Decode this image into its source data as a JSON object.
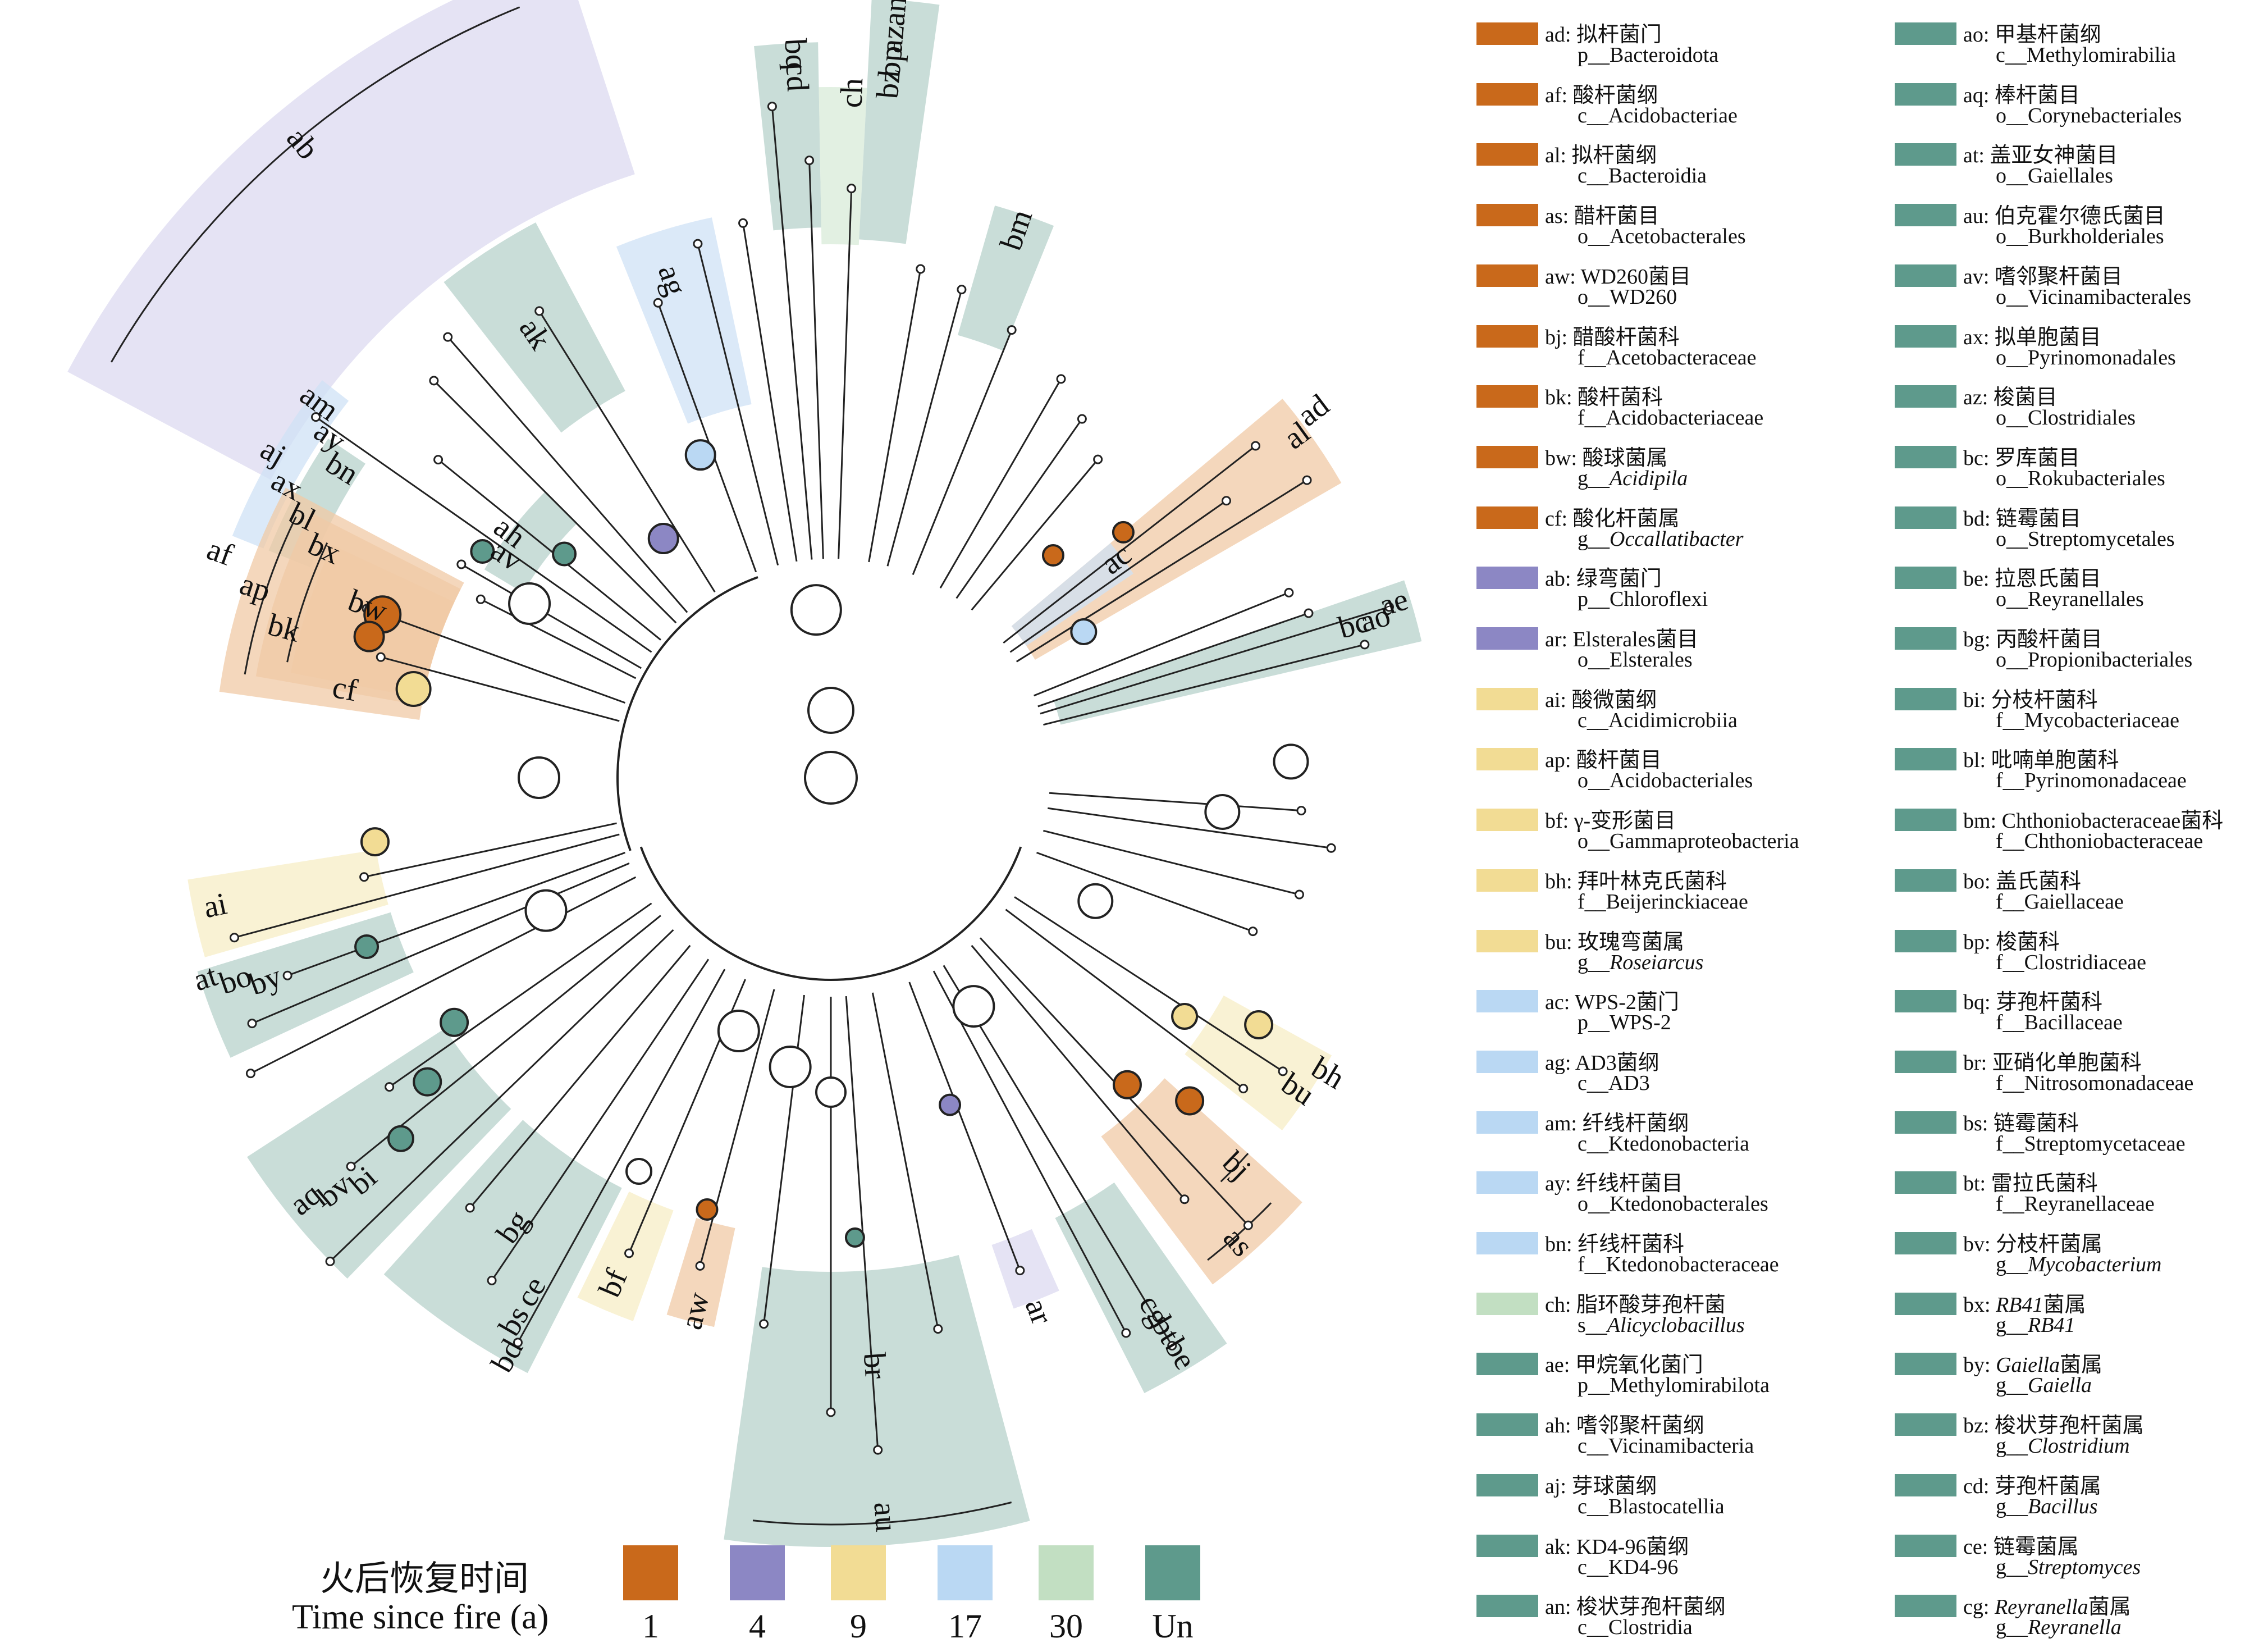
{
  "colors": {
    "t1": "#c9691b",
    "t4": "#8c87c4",
    "t9": "#f2dc94",
    "t17": "#bad8f3",
    "t30": "#c2dfc2",
    "tUn": "#5e9a8c",
    "shade_t1": "#f0c9a6",
    "shade_t4": "#dcdaf0",
    "shade_t9": "#f7edc6",
    "shade_t17": "#cfe1f6",
    "shade_t30": "#d8ebd8",
    "shade_tUn": "#b7d2cb"
  },
  "time_legend": {
    "title_cn": "火后恢复时间",
    "title_en": "Time since fire (a)",
    "items": [
      {
        "label": "1",
        "color": "#c9691b"
      },
      {
        "label": "4",
        "color": "#8c87c4"
      },
      {
        "label": "9",
        "color": "#f2dc94"
      },
      {
        "label": "17",
        "color": "#bad8f3"
      },
      {
        "label": "30",
        "color": "#c2dfc2"
      },
      {
        "label": "Un",
        "color": "#5e9a8c"
      }
    ]
  },
  "clade_labels": [
    "ab",
    "af",
    "ap",
    "bk",
    "bw",
    "cf",
    "ah",
    "av",
    "aj",
    "ax",
    "bl",
    "bx",
    "am",
    "ay",
    "bn",
    "ak",
    "ag",
    "bq",
    "cd",
    "ch",
    "an",
    "az",
    "bp",
    "bz",
    "bm",
    "ad",
    "al",
    "ac",
    "ae",
    "ao",
    "bc",
    "ai",
    "at",
    "bo",
    "by",
    "aq",
    "bv",
    "bi",
    "bg",
    "ce",
    "bs",
    "bd",
    "bf",
    "aw",
    "br",
    "au",
    "ar",
    "cg",
    "bt",
    "be",
    "bj",
    "as",
    "bu",
    "bh"
  ],
  "key_left": [
    {
      "code": "ad: 拟杆菌门",
      "taxon": "p__Bacteroidota",
      "italic": false,
      "color": "#c9691b"
    },
    {
      "code": "af: 酸杆菌纲",
      "taxon": "c__Acidobacteriae",
      "italic": false,
      "color": "#c9691b"
    },
    {
      "code": "al: 拟杆菌纲",
      "taxon": "c__Bacteroidia",
      "italic": false,
      "color": "#c9691b"
    },
    {
      "code": "as: 醋杆菌目",
      "taxon": "o__Acetobacterales",
      "italic": false,
      "color": "#c9691b"
    },
    {
      "code": "aw: WD260菌目",
      "taxon": "o__WD260",
      "italic": false,
      "color": "#c9691b"
    },
    {
      "code": "bj: 醋酸杆菌科",
      "taxon": "f__Acetobacteraceae",
      "italic": false,
      "color": "#c9691b"
    },
    {
      "code": "bk: 酸杆菌科",
      "taxon": "f__Acidobacteriaceae",
      "italic": false,
      "color": "#c9691b"
    },
    {
      "code": "bw: 酸球菌属",
      "taxon": "g__",
      "taxon_it": "Acidipila",
      "italic": true,
      "color": "#c9691b"
    },
    {
      "code": "cf: 酸化杆菌属",
      "taxon": "g__",
      "taxon_it": "Occallatibacter",
      "italic": true,
      "color": "#c9691b"
    },
    {
      "code": "ab: 绿弯菌门",
      "taxon": "p__Chloroflexi",
      "italic": false,
      "color": "#8c87c4"
    },
    {
      "code": "ar: Elsterales菌目",
      "taxon": "o__Elsterales",
      "italic": false,
      "color": "#8c87c4"
    },
    {
      "code": "ai: 酸微菌纲",
      "taxon": "c__Acidimicrobiia",
      "italic": false,
      "color": "#f2dc94"
    },
    {
      "code": "ap: 酸杆菌目",
      "taxon": "o__Acidobacteriales",
      "italic": false,
      "color": "#f2dc94"
    },
    {
      "code": "bf: γ-变形菌目",
      "taxon": "o__Gammaproteobacteria",
      "italic": false,
      "color": "#f2dc94"
    },
    {
      "code": "bh: 拜叶林克氏菌科",
      "taxon": "f__Beijerinckiaceae",
      "italic": false,
      "color": "#f2dc94"
    },
    {
      "code": "bu: 玫瑰弯菌属",
      "taxon": "g__",
      "taxon_it": "Roseiarcus",
      "italic": true,
      "color": "#f2dc94"
    },
    {
      "code": "ac: WPS-2菌门",
      "taxon": "p__WPS-2",
      "italic": false,
      "color": "#bad8f3"
    },
    {
      "code": "ag: AD3菌纲",
      "taxon": "c__AD3",
      "italic": false,
      "color": "#bad8f3"
    },
    {
      "code": "am: 纤线杆菌纲",
      "taxon": "c__Ktedonobacteria",
      "italic": false,
      "color": "#bad8f3"
    },
    {
      "code": "ay: 纤线杆菌目",
      "taxon": "o__Ktedonobacterales",
      "italic": false,
      "color": "#bad8f3"
    },
    {
      "code": "bn: 纤线杆菌科",
      "taxon": "f__Ktedonobacteraceae",
      "italic": false,
      "color": "#bad8f3"
    },
    {
      "code": "ch: 脂环酸芽孢杆菌",
      "taxon": "s__",
      "taxon_it": "Alicyclobacillus",
      "italic": true,
      "color": "#c2dfc2"
    },
    {
      "code": "ae: 甲烷氧化菌门",
      "taxon": "p__Methylomirabilota",
      "italic": false,
      "color": "#5e9a8c"
    },
    {
      "code": "ah: 嗜邻聚杆菌纲",
      "taxon": "c__Vicinamibacteria",
      "italic": false,
      "color": "#5e9a8c"
    },
    {
      "code": "aj: 芽球菌纲",
      "taxon": "c__Blastocatellia",
      "italic": false,
      "color": "#5e9a8c"
    },
    {
      "code": "ak: KD4-96菌纲",
      "taxon": "c__KD4-96",
      "italic": false,
      "color": "#5e9a8c"
    },
    {
      "code": "an: 梭状芽孢杆菌纲",
      "taxon": "c__Clostridia",
      "italic": false,
      "color": "#5e9a8c"
    }
  ],
  "key_right": [
    {
      "code": "ao: 甲基杆菌纲",
      "taxon": "c__Methylomirabilia",
      "italic": false,
      "color": "#5e9a8c"
    },
    {
      "code": "aq: 棒杆菌目",
      "taxon": "o__Corynebacteriales",
      "italic": false,
      "color": "#5e9a8c"
    },
    {
      "code": "at: 盖亚女神菌目",
      "taxon": "o__Gaiellales",
      "italic": false,
      "color": "#5e9a8c"
    },
    {
      "code": "au: 伯克霍尔德氏菌目",
      "taxon": "o__Burkholderiales",
      "italic": false,
      "color": "#5e9a8c"
    },
    {
      "code": "av: 嗜邻聚杆菌目",
      "taxon": "o__Vicinamibacterales",
      "italic": false,
      "color": "#5e9a8c"
    },
    {
      "code": "ax: 拟单胞菌目",
      "taxon": "o__Pyrinomonadales",
      "italic": false,
      "color": "#5e9a8c"
    },
    {
      "code": "az: 梭菌目",
      "taxon": "o__Clostridiales",
      "italic": false,
      "color": "#5e9a8c"
    },
    {
      "code": "bc: 罗库菌目",
      "taxon": "o__Rokubacteriales",
      "italic": false,
      "color": "#5e9a8c"
    },
    {
      "code": "bd: 链霉菌目",
      "taxon": "o__Streptomycetales",
      "italic": false,
      "color": "#5e9a8c"
    },
    {
      "code": "be: 拉恩氏菌目",
      "taxon": "o__Reyranellales",
      "italic": false,
      "color": "#5e9a8c"
    },
    {
      "code": "bg: 丙酸杆菌目",
      "taxon": "o__Propionibacteriales",
      "italic": false,
      "color": "#5e9a8c"
    },
    {
      "code": "bi: 分枝杆菌科",
      "taxon": "f__Mycobacteriaceae",
      "italic": false,
      "color": "#5e9a8c"
    },
    {
      "code": "bl: 吡喃单胞菌科",
      "taxon": "f__Pyrinomonadaceae",
      "italic": false,
      "color": "#5e9a8c"
    },
    {
      "code": "bm: Chthoniobacteraceae菌科",
      "taxon": "f__Chthoniobacteraceae",
      "italic": false,
      "color": "#5e9a8c"
    },
    {
      "code": "bo: 盖氏菌科",
      "taxon": "f__Gaiellaceae",
      "italic": false,
      "color": "#5e9a8c"
    },
    {
      "code": "bp: 梭菌科",
      "taxon": "f__Clostridiaceae",
      "italic": false,
      "color": "#5e9a8c"
    },
    {
      "code": "bq: 芽孢杆菌科",
      "taxon": "f__Bacillaceae",
      "italic": false,
      "color": "#5e9a8c"
    },
    {
      "code": "br: 亚硝化单胞菌科",
      "taxon": "f__Nitrosomonadaceae",
      "italic": false,
      "color": "#5e9a8c"
    },
    {
      "code": "bs: 链霉菌科",
      "taxon": "f__Streptomycetaceae",
      "italic": false,
      "color": "#5e9a8c"
    },
    {
      "code": "bt: 雷拉氏菌科",
      "taxon": "f__Reyranellaceae",
      "italic": false,
      "color": "#5e9a8c"
    },
    {
      "code": "bv: 分枝杆菌属",
      "taxon": "g__",
      "taxon_it": "Mycobacterium",
      "italic": true,
      "color": "#5e9a8c"
    },
    {
      "code": "bx: ",
      "code_it": "RB41",
      "code_suffix": "菌属",
      "taxon": "g__",
      "taxon_it": "RB41",
      "italic": true,
      "color": "#5e9a8c"
    },
    {
      "code": "by: ",
      "code_it": "Gaiella",
      "code_suffix": "菌属",
      "taxon": "g__",
      "taxon_it": "Gaiella",
      "italic": true,
      "color": "#5e9a8c"
    },
    {
      "code": "bz: 梭状芽孢杆菌属",
      "taxon": "g__",
      "taxon_it": "Clostridium",
      "italic": true,
      "color": "#5e9a8c"
    },
    {
      "code": "cd: 芽孢杆菌属",
      "taxon": "g__",
      "taxon_it": "Bacillus",
      "italic": true,
      "color": "#5e9a8c"
    },
    {
      "code": "ce: 链霉菌属",
      "taxon": "g__",
      "taxon_it": "Streptomyces",
      "italic": true,
      "color": "#5e9a8c"
    },
    {
      "code": "cg: ",
      "code_it": "Reyranella",
      "code_suffix": "菌属",
      "taxon": "g__",
      "taxon_it": "Reyranella",
      "italic": true,
      "color": "#5e9a8c"
    }
  ]
}
